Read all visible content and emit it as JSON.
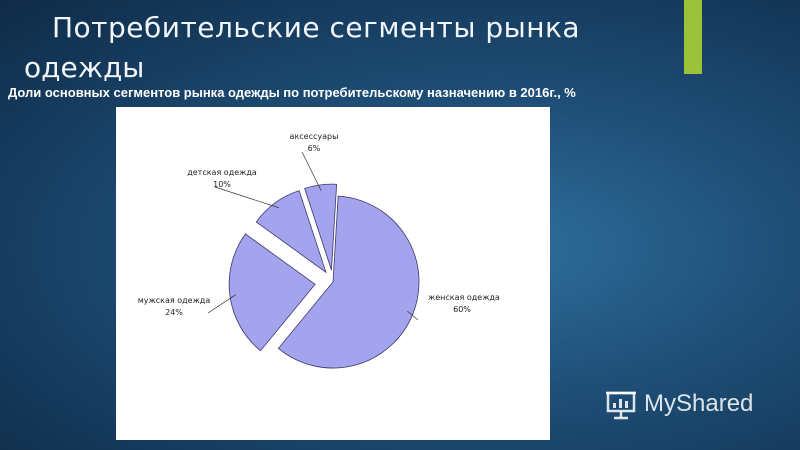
{
  "slide": {
    "title_line1": "Потребительские  сегменты  рынка",
    "title_line2": "одежды",
    "subtitle": "Доли основных сегментов рынка одежды по потребительскому назначению в 2016г., %"
  },
  "watermark": {
    "text": "MyShared",
    "icon": "presentation-board-icon"
  },
  "colors": {
    "slice": "#a3a3ee",
    "accent": "#9cc23a",
    "background": "#1f5079"
  },
  "chart_data": {
    "type": "pie",
    "title": "",
    "slices": [
      {
        "label": "женская одежда",
        "value_label": "60%",
        "value": 60
      },
      {
        "label": "мужская одежда",
        "value_label": "24%",
        "value": 24
      },
      {
        "label": "детская одежда",
        "value_label": "10%",
        "value": 10
      },
      {
        "label": "аксессуары",
        "value_label": "6%",
        "value": 6
      }
    ]
  }
}
